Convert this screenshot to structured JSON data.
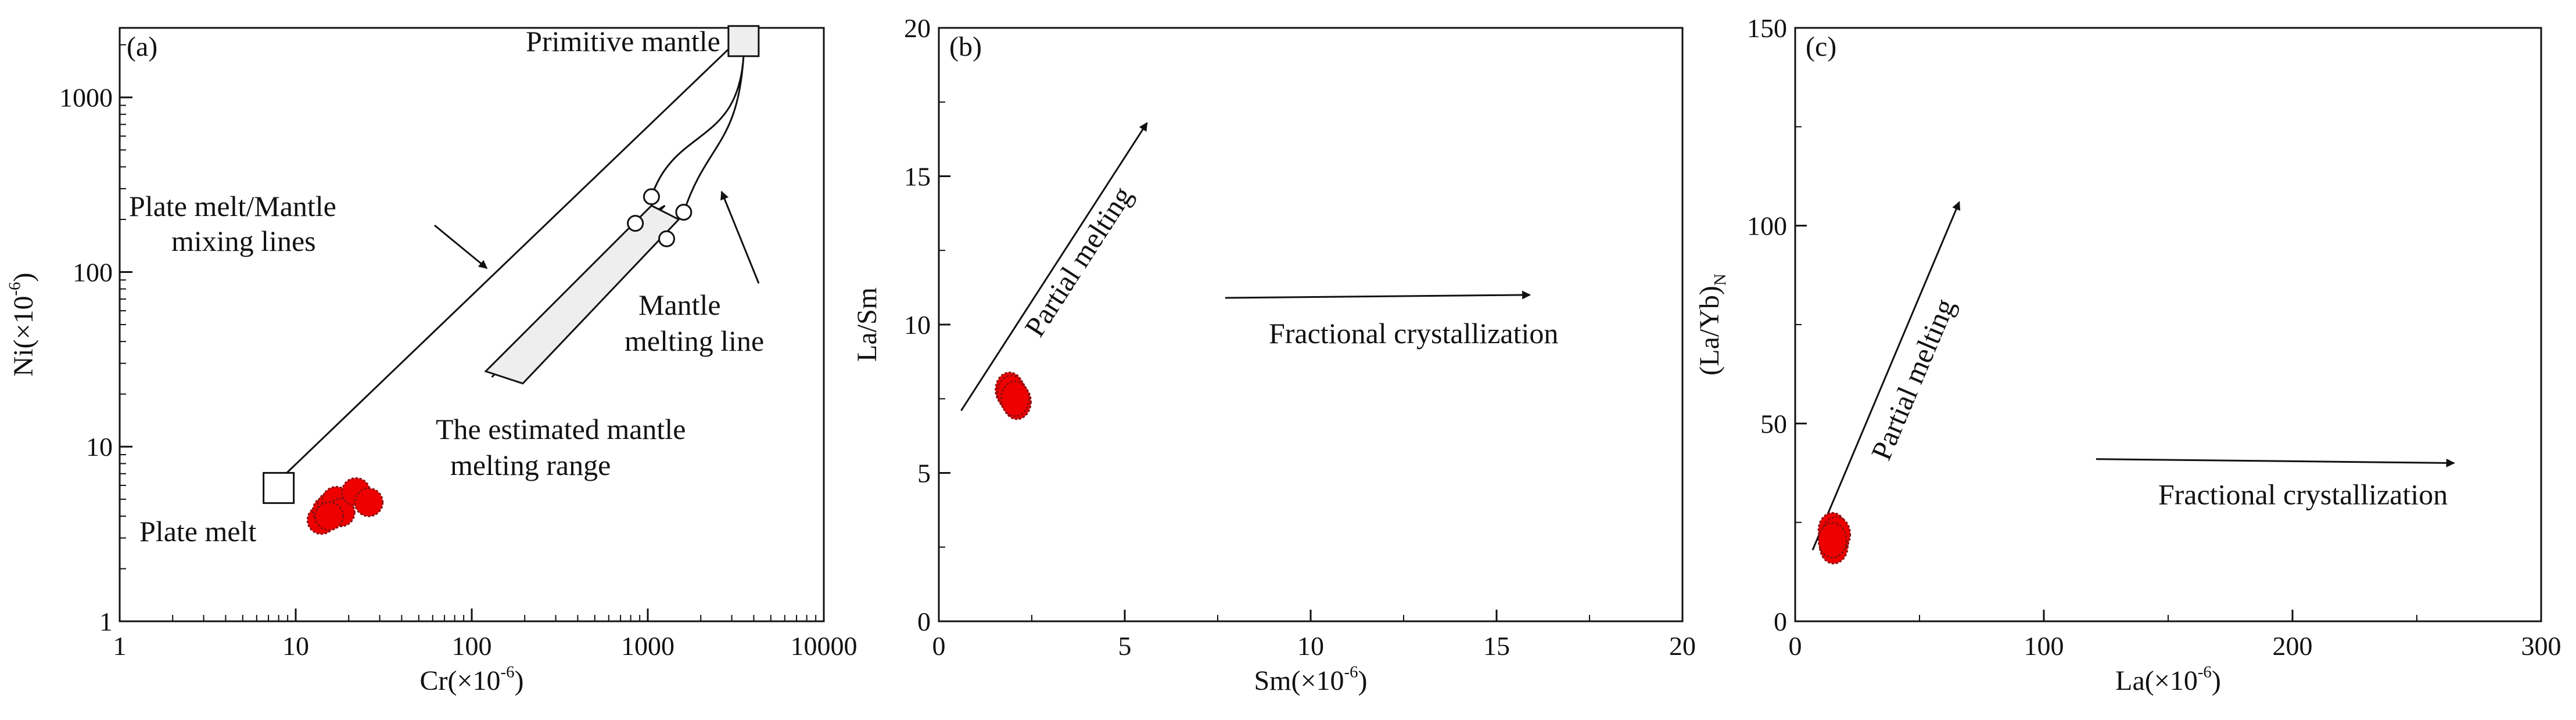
{
  "chart_data": [
    {
      "type": "scatter",
      "panel_label": "(a)",
      "xlabel": "Cr(×10",
      "xlabel_exp": "-6",
      "ylabel": "Ni(×10",
      "ylabel_exp": "-6",
      "x_scale": "log",
      "y_scale": "log",
      "xlim": [
        1,
        10000
      ],
      "ylim": [
        1,
        2500
      ],
      "x_ticks": [
        1,
        10,
        100,
        1000,
        10000
      ],
      "x_tick_labels": [
        "1",
        "10",
        "100",
        "1000",
        "10000"
      ],
      "y_ticks": [
        1,
        10,
        100,
        1000
      ],
      "y_tick_labels": [
        "1",
        "10",
        "100",
        "1000"
      ],
      "samples": [
        {
          "x": 14,
          "y": 3.8
        },
        {
          "x": 15,
          "y": 4.3
        },
        {
          "x": 16,
          "y": 4.6
        },
        {
          "x": 17,
          "y": 4.9
        },
        {
          "x": 18,
          "y": 4.2
        },
        {
          "x": 22,
          "y": 5.5
        },
        {
          "x": 26,
          "y": 4.8
        },
        {
          "x": 15.5,
          "y": 4.0
        }
      ],
      "primitive_mantle": {
        "x": 3500,
        "y": 2100,
        "label": "Primitive mantle"
      },
      "plate_melt": {
        "x": 8,
        "y": 5.8,
        "label": "Plate  melt"
      },
      "mixing_line_label": [
        "Plate melt/Mantle",
        "mixing lines"
      ],
      "mantle_melting_points": [
        {
          "x": 1050,
          "y": 270
        },
        {
          "x": 850,
          "y": 190
        },
        {
          "x": 1600,
          "y": 220
        },
        {
          "x": 1280,
          "y": 155
        }
      ],
      "mantle_melting_label": [
        "Mantle",
        "melting line"
      ],
      "melting_range_label": [
        "The estimated mantle",
        "melting range"
      ]
    },
    {
      "type": "scatter",
      "panel_label": "(b)",
      "xlabel": "Sm(×10",
      "xlabel_exp": "-6",
      "ylabel": "La/Sm",
      "xlim": [
        0,
        20
      ],
      "ylim": [
        0,
        20
      ],
      "x_ticks": [
        0,
        5,
        10,
        15,
        20
      ],
      "y_ticks": [
        0,
        5,
        10,
        15,
        20
      ],
      "samples": [
        {
          "x": 1.9,
          "y": 7.8
        },
        {
          "x": 2.0,
          "y": 7.6
        },
        {
          "x": 2.1,
          "y": 7.4
        },
        {
          "x": 1.95,
          "y": 7.7
        },
        {
          "x": 2.05,
          "y": 7.5
        }
      ],
      "trends": [
        {
          "label": "Partial melting",
          "from": [
            0.6,
            7.1
          ],
          "to": [
            5.6,
            16.8
          ]
        },
        {
          "label": "Fractional crystallization",
          "from": [
            7.7,
            10.9
          ],
          "to": [
            15.9,
            11.0
          ]
        }
      ]
    },
    {
      "type": "scatter",
      "panel_label": "(c)",
      "xlabel": "La(×10",
      "xlabel_exp": "-6",
      "ylabel": "(La/Yb)",
      "ylabel_sub": "N",
      "xlim": [
        0,
        300
      ],
      "ylim": [
        0,
        150
      ],
      "x_ticks": [
        0,
        100,
        200,
        300
      ],
      "y_ticks": [
        0,
        50,
        100,
        150
      ],
      "samples": [
        {
          "x": 15,
          "y": 23
        },
        {
          "x": 16,
          "y": 21
        },
        {
          "x": 15.5,
          "y": 19
        },
        {
          "x": 16.5,
          "y": 22
        },
        {
          "x": 15,
          "y": 20.5
        }
      ],
      "trends": [
        {
          "label": "Partial melting",
          "from": [
            7,
            18
          ],
          "to": [
            66,
            106
          ]
        },
        {
          "label": "Fractional crystallization",
          "from": [
            121,
            41
          ],
          "to": [
            265,
            40
          ]
        }
      ]
    }
  ],
  "colors": {
    "sample_fill": "#ee0000",
    "sample_stroke": "#8a1010",
    "axis": "#111111",
    "box_fill": "#eeeeee"
  }
}
